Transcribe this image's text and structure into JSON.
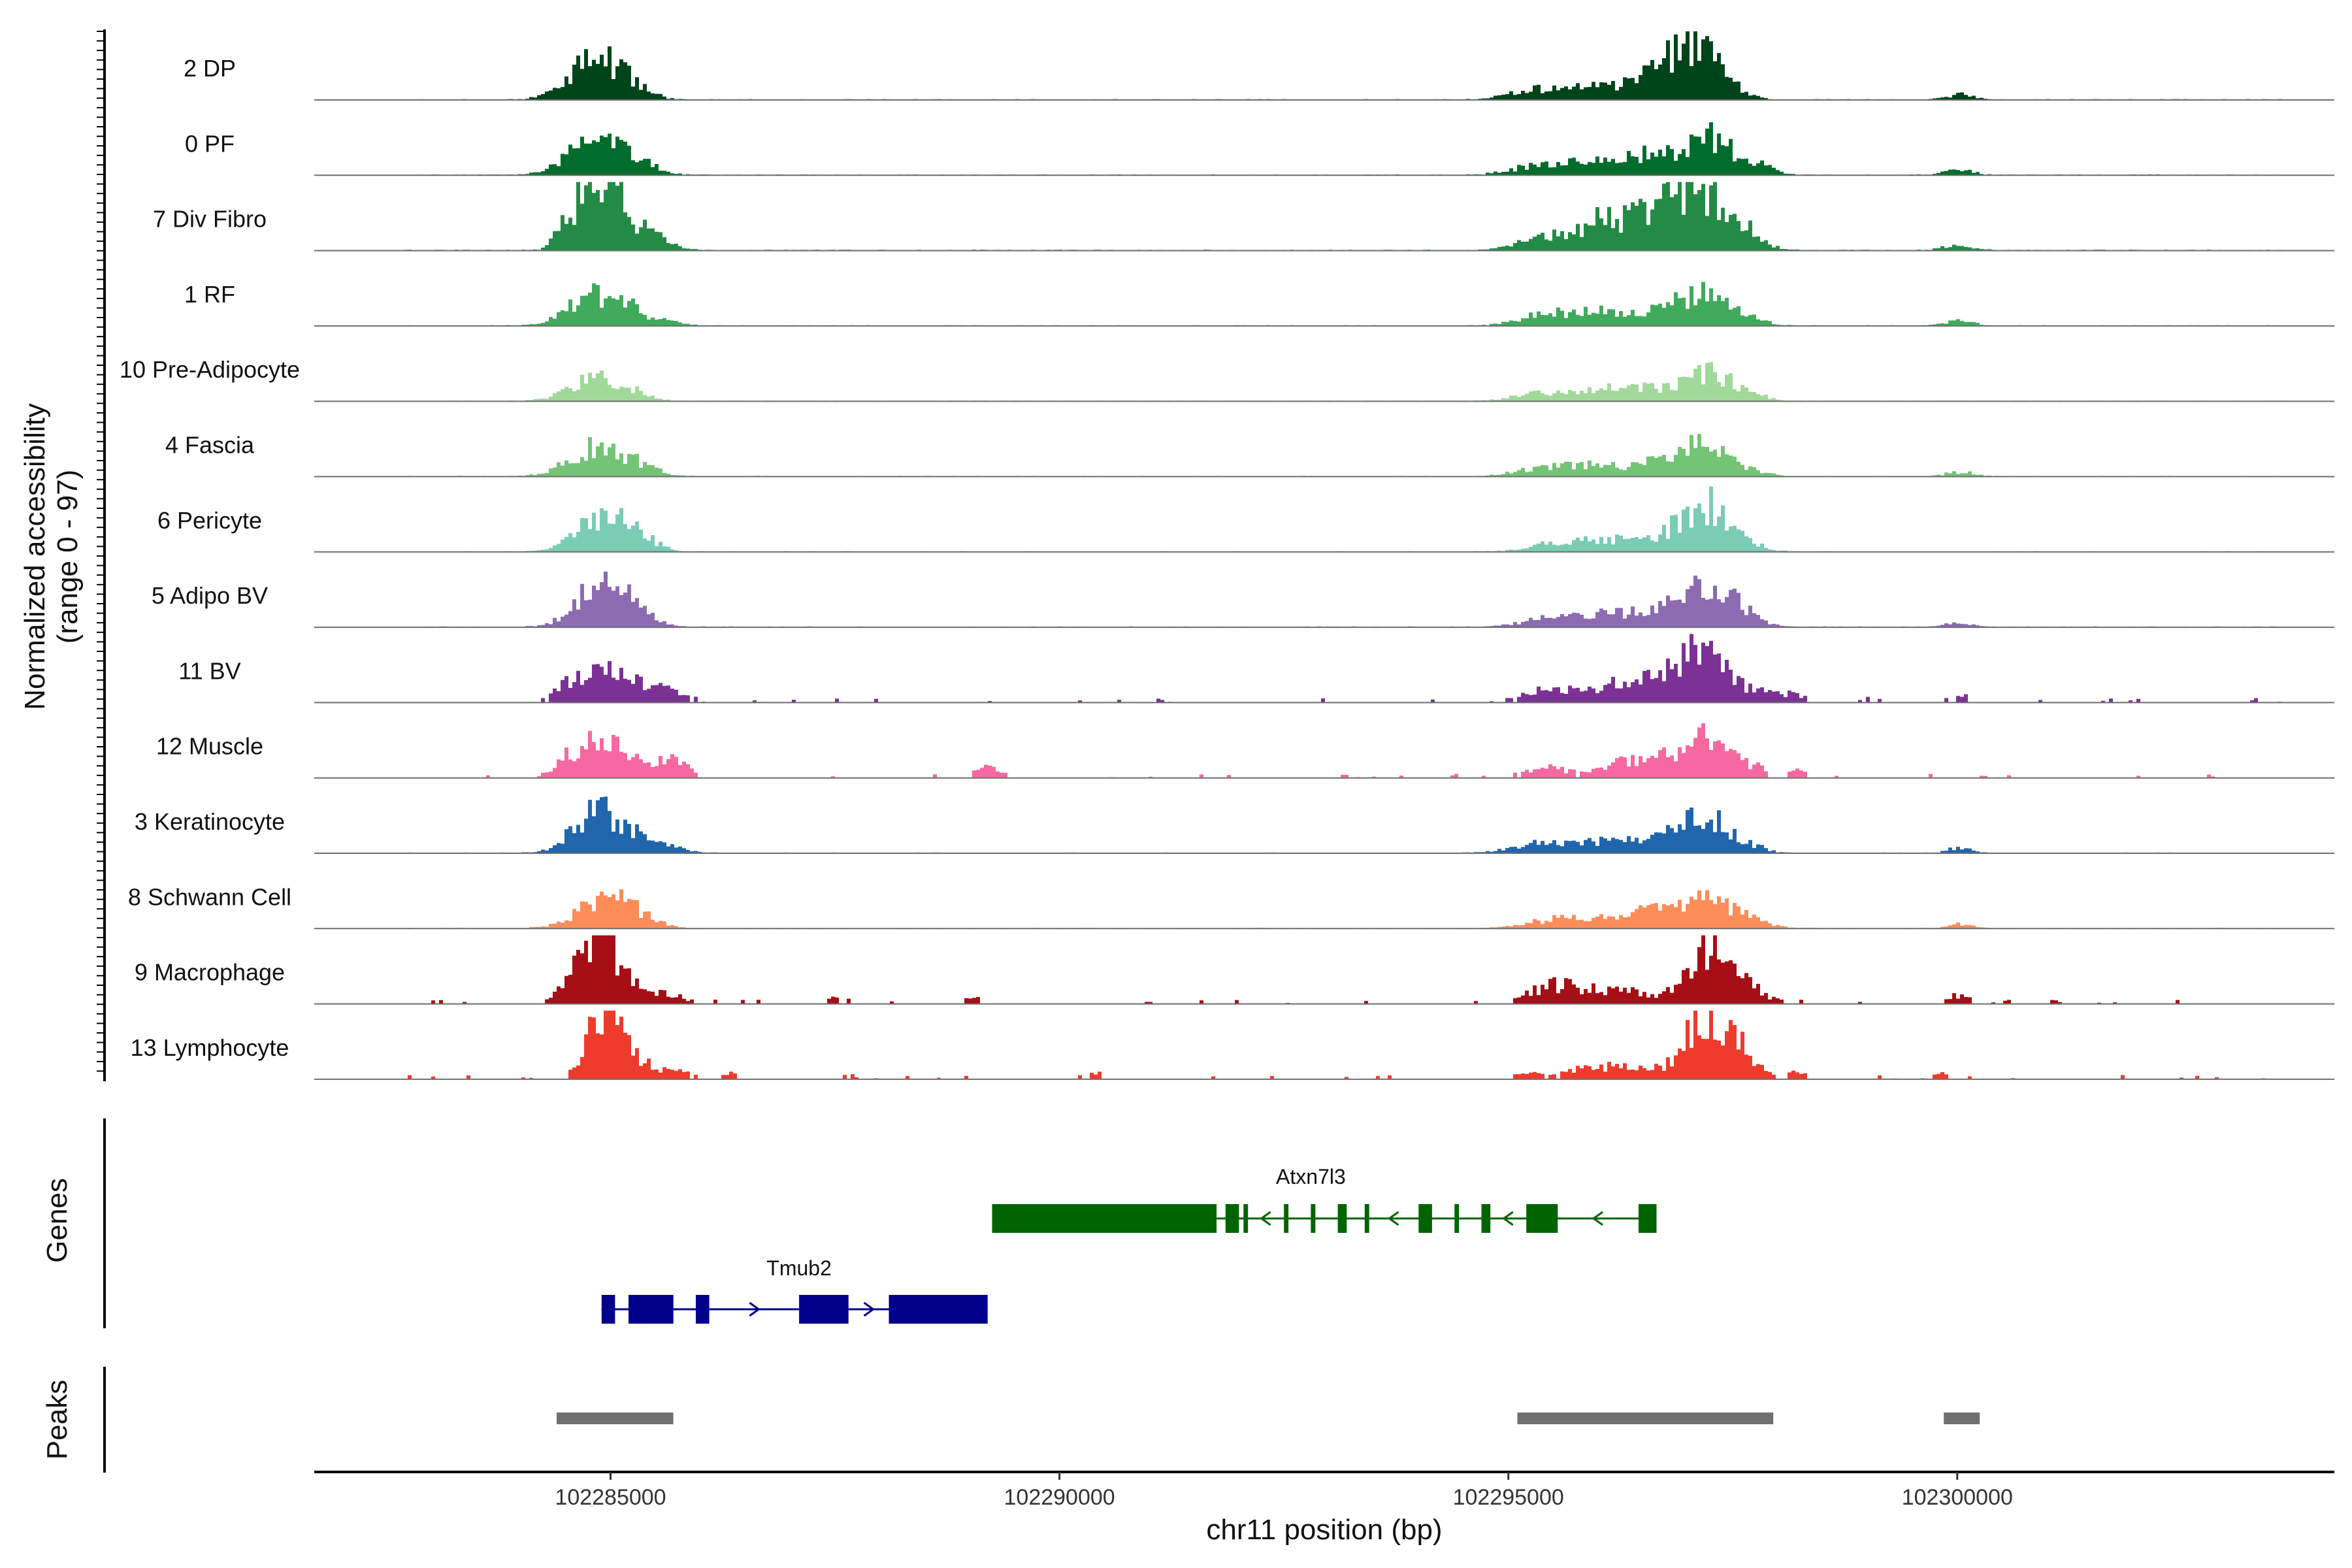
{
  "chart_data": {
    "type": "area",
    "title": "",
    "ylabel_line1": "Normalized accessibility",
    "ylabel_line2": "(range 0 - 97)",
    "ylim": [
      0,
      97
    ],
    "xlabel": "chr11 position (bp)",
    "xlim": [
      102281700,
      102304200
    ],
    "xticks": [
      102285000,
      102290000,
      102295000,
      102300000
    ],
    "xtick_labels": [
      "102285000",
      "102290000",
      "102295000",
      "102300000"
    ],
    "region_start": 102282700,
    "region_end": 102303600,
    "tracks": [
      {
        "name": "2 DP",
        "color": "#00441B",
        "noise": 1.2,
        "sparse": false,
        "peaks": [
          [
            102284800,
            280,
            55
          ],
          [
            102285200,
            200,
            14
          ],
          [
            102295200,
            250,
            12
          ],
          [
            102295800,
            300,
            16
          ],
          [
            102296500,
            300,
            22
          ],
          [
            102297150,
            260,
            58
          ],
          [
            102296800,
            250,
            25
          ],
          [
            102300000,
            150,
            7
          ]
        ]
      },
      {
        "name": "0 PF",
        "color": "#006D2C",
        "noise": 1.2,
        "sparse": false,
        "peaks": [
          [
            102284800,
            280,
            50
          ],
          [
            102285300,
            200,
            14
          ],
          [
            102295200,
            250,
            10
          ],
          [
            102295800,
            300,
            16
          ],
          [
            102296500,
            300,
            26
          ],
          [
            102297200,
            270,
            52
          ],
          [
            102297700,
            200,
            12
          ],
          [
            102300000,
            150,
            7
          ]
        ]
      },
      {
        "name": "7 Div Fibro",
        "color": "#238B45",
        "noise": 1.4,
        "sparse": false,
        "peaks": [
          [
            102284500,
            120,
            25
          ],
          [
            102284800,
            200,
            82
          ],
          [
            102285000,
            150,
            45
          ],
          [
            102285400,
            200,
            30
          ],
          [
            102295300,
            250,
            14
          ],
          [
            102296000,
            300,
            40
          ],
          [
            102296600,
            250,
            46
          ],
          [
            102297100,
            250,
            80
          ],
          [
            102297600,
            200,
            25
          ],
          [
            102300000,
            150,
            8
          ]
        ]
      },
      {
        "name": "1 RF",
        "color": "#41AB5D",
        "noise": 1.1,
        "sparse": false,
        "peaks": [
          [
            102284800,
            280,
            42
          ],
          [
            102285200,
            150,
            15
          ],
          [
            102285600,
            200,
            6
          ],
          [
            102295300,
            250,
            12
          ],
          [
            102295900,
            300,
            22
          ],
          [
            102296600,
            250,
            15
          ],
          [
            102297100,
            250,
            42
          ],
          [
            102297600,
            200,
            12
          ],
          [
            102300000,
            150,
            7
          ]
        ]
      },
      {
        "name": "10 Pre-Adipocyte",
        "color": "#A1D99B",
        "noise": 1.1,
        "sparse": false,
        "peaks": [
          [
            102284800,
            280,
            30
          ],
          [
            102285200,
            200,
            8
          ],
          [
            102295300,
            250,
            10
          ],
          [
            102296000,
            300,
            15
          ],
          [
            102296500,
            250,
            16
          ],
          [
            102297200,
            250,
            42
          ],
          [
            102297700,
            150,
            8
          ]
        ]
      },
      {
        "name": "4 Fascia",
        "color": "#74C476",
        "noise": 1.1,
        "sparse": false,
        "peaks": [
          [
            102284800,
            280,
            40
          ],
          [
            102285300,
            200,
            14
          ],
          [
            102295300,
            250,
            10
          ],
          [
            102295900,
            300,
            16
          ],
          [
            102296600,
            250,
            15
          ],
          [
            102297100,
            270,
            40
          ],
          [
            102297600,
            200,
            10
          ],
          [
            102300000,
            150,
            6
          ]
        ]
      },
      {
        "name": "6 Pericyte",
        "color": "#7ACCB4",
        "noise": 1.1,
        "sparse": false,
        "peaks": [
          [
            102284900,
            280,
            50
          ],
          [
            102285300,
            200,
            12
          ],
          [
            102295600,
            300,
            14
          ],
          [
            102296300,
            300,
            16
          ],
          [
            102296800,
            200,
            20
          ],
          [
            102297200,
            220,
            60
          ],
          [
            102297600,
            200,
            12
          ]
        ]
      },
      {
        "name": "5 Adipo BV",
        "color": "#8C6BB1",
        "noise": 1.2,
        "sparse": false,
        "peaks": [
          [
            102284900,
            280,
            60
          ],
          [
            102285300,
            200,
            10
          ],
          [
            102295400,
            300,
            10
          ],
          [
            102296000,
            300,
            18
          ],
          [
            102296600,
            250,
            22
          ],
          [
            102297200,
            250,
            60
          ],
          [
            102297600,
            200,
            12
          ],
          [
            102300000,
            150,
            5
          ]
        ]
      },
      {
        "name": "11 BV",
        "color": "#7B3294",
        "noise": 0.4,
        "sparse": true,
        "peaks": [
          [
            102284500,
            150,
            20
          ],
          [
            102284900,
            250,
            35
          ],
          [
            102285300,
            250,
            18
          ],
          [
            102285700,
            200,
            10
          ],
          [
            102295300,
            250,
            12
          ],
          [
            102295800,
            300,
            15
          ],
          [
            102296300,
            250,
            22
          ],
          [
            102296800,
            250,
            30
          ],
          [
            102297150,
            200,
            65
          ],
          [
            102297600,
            250,
            18
          ],
          [
            102298100,
            200,
            10
          ],
          [
            102299000,
            100,
            6
          ],
          [
            102300000,
            120,
            10
          ],
          [
            102303300,
            100,
            5
          ]
        ]
      },
      {
        "name": "12 Muscle",
        "color": "#F768A1",
        "noise": 0.4,
        "sparse": true,
        "peaks": [
          [
            102284600,
            200,
            30
          ],
          [
            102284900,
            200,
            45
          ],
          [
            102285200,
            150,
            25
          ],
          [
            102285600,
            150,
            22
          ],
          [
            102285800,
            100,
            12
          ],
          [
            102289200,
            150,
            15
          ],
          [
            102295400,
            250,
            14
          ],
          [
            102296200,
            250,
            18
          ],
          [
            102296700,
            250,
            25
          ],
          [
            102297200,
            220,
            58
          ],
          [
            102297700,
            150,
            15
          ],
          [
            102298200,
            100,
            10
          ]
        ]
      },
      {
        "name": "3 Keratinocyte",
        "color": "#2166AC",
        "noise": 1.0,
        "sparse": false,
        "peaks": [
          [
            102284800,
            250,
            55
          ],
          [
            102285200,
            200,
            20
          ],
          [
            102285600,
            200,
            8
          ],
          [
            102295300,
            300,
            12
          ],
          [
            102296000,
            300,
            15
          ],
          [
            102296600,
            250,
            18
          ],
          [
            102297150,
            250,
            55
          ],
          [
            102297600,
            200,
            10
          ],
          [
            102300000,
            120,
            8
          ]
        ]
      },
      {
        "name": "8 Schwann Cell",
        "color": "#FC8D59",
        "noise": 1.1,
        "sparse": false,
        "peaks": [
          [
            102284900,
            280,
            42
          ],
          [
            102285300,
            200,
            12
          ],
          [
            102295500,
            300,
            12
          ],
          [
            102296100,
            300,
            15
          ],
          [
            102296600,
            250,
            20
          ],
          [
            102297200,
            250,
            38
          ],
          [
            102297700,
            200,
            10
          ],
          [
            102300000,
            120,
            6
          ]
        ]
      },
      {
        "name": "9 Macrophage",
        "color": "#A50F15",
        "noise": 0.5,
        "sparse": true,
        "peaks": [
          [
            102284700,
            200,
            55
          ],
          [
            102284900,
            150,
            50
          ],
          [
            102285200,
            200,
            25
          ],
          [
            102285600,
            200,
            12
          ],
          [
            102287500,
            150,
            8
          ],
          [
            102289000,
            150,
            8
          ],
          [
            102295400,
            250,
            20
          ],
          [
            102295800,
            250,
            18
          ],
          [
            102296300,
            200,
            15
          ],
          [
            102296900,
            200,
            25
          ],
          [
            102297300,
            200,
            82
          ],
          [
            102297700,
            200,
            15
          ],
          [
            102300000,
            120,
            12
          ]
        ]
      },
      {
        "name": "13 Lymphocyte",
        "color": "#EF3B2C",
        "noise": 0.3,
        "sparse": true,
        "peaks": [
          [
            102284800,
            150,
            48
          ],
          [
            102285000,
            150,
            72
          ],
          [
            102285300,
            150,
            20
          ],
          [
            102285700,
            200,
            10
          ],
          [
            102286300,
            100,
            8
          ],
          [
            102287600,
            100,
            8
          ],
          [
            102290400,
            100,
            8
          ],
          [
            102295200,
            150,
            8
          ],
          [
            102295700,
            150,
            12
          ],
          [
            102296100,
            200,
            15
          ],
          [
            102296500,
            200,
            15
          ],
          [
            102297100,
            200,
            70
          ],
          [
            102297500,
            200,
            50
          ],
          [
            102298200,
            100,
            10
          ],
          [
            102299800,
            100,
            8
          ]
        ]
      }
    ],
    "genes_label": "Genes",
    "genes": [
      {
        "name": "Atxn7l3",
        "color": "#006400",
        "strand": "-",
        "start": 102289250,
        "end": 102296650,
        "exons": [
          [
            102289250,
            102291750
          ],
          [
            102291850,
            102292000
          ],
          [
            102292050,
            102292100
          ],
          [
            102292500,
            102292550
          ],
          [
            102292800,
            102292850
          ],
          [
            102293100,
            102293200
          ],
          [
            102293400,
            102293450
          ],
          [
            102294000,
            102294150
          ],
          [
            102294400,
            102294450
          ],
          [
            102294700,
            102294800
          ],
          [
            102295200,
            102295550
          ],
          [
            102296450,
            102296650
          ]
        ]
      },
      {
        "name": "Tmub2",
        "color": "#00008B",
        "strand": "+",
        "start": 102284900,
        "end": 102289200,
        "exons": [
          [
            102284900,
            102285050
          ],
          [
            102285200,
            102285700
          ],
          [
            102285950,
            102286100
          ],
          [
            102287100,
            102287650
          ],
          [
            102288100,
            102289200
          ]
        ]
      }
    ],
    "peaks_label": "Peaks",
    "peak_color": "#707070",
    "peak_regions": [
      [
        102284400,
        102285700
      ],
      [
        102295100,
        102297950
      ],
      [
        102299850,
        102300250
      ]
    ]
  }
}
